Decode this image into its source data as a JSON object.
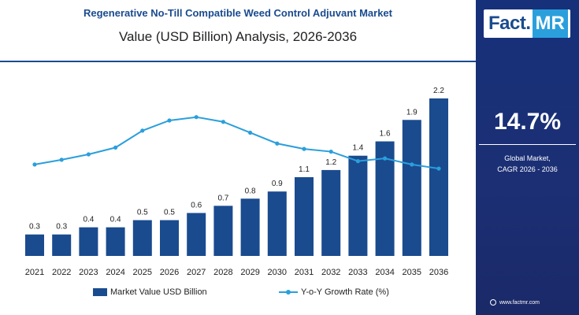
{
  "colors": {
    "bar": "#1a4b8f",
    "line": "#2b9fdc",
    "panel": "#16307a",
    "logo_accent": "#2b9fdc"
  },
  "logo": {
    "fact": "Fact.",
    "mr": "MR"
  },
  "side_panel": {
    "cagr_value": "14.7%",
    "cagr_label_line1": "Global Market,",
    "cagr_label_line2": "CAGR 2026 - 2036",
    "website": "www.factmr.com"
  },
  "chart_data": {
    "type": "bar",
    "title": "Regenerative No-Till Compatible Weed Control Adjuvant Market",
    "subtitle": "Value (USD Billion) Analysis, 2026-2036",
    "categories": [
      "2021",
      "2022",
      "2023",
      "2024",
      "2025",
      "2026",
      "2027",
      "2028",
      "2029",
      "2030",
      "2031",
      "2032",
      "2033",
      "2034",
      "2035",
      "2036"
    ],
    "series": [
      {
        "name": "Market Value USD Billion",
        "type": "bar",
        "values": [
          0.3,
          0.3,
          0.4,
          0.4,
          0.5,
          0.5,
          0.6,
          0.7,
          0.8,
          0.9,
          1.1,
          1.2,
          1.4,
          1.6,
          1.9,
          2.2
        ],
        "labels": [
          "0.3",
          "0.3",
          "0.4",
          "0.4",
          "0.5",
          "0.5",
          "0.6",
          "0.7",
          "0.8",
          "0.9",
          "1.1",
          "1.2",
          "1.4",
          "1.6",
          "1.9",
          "2.2"
        ]
      },
      {
        "name": "Y-o-Y Growth Rate (%)",
        "type": "line",
        "values": [
          13.5,
          14.2,
          15.0,
          16.0,
          18.5,
          20.0,
          20.5,
          19.8,
          18.2,
          16.6,
          15.8,
          15.4,
          14.0,
          14.4,
          13.5,
          12.9
        ]
      }
    ],
    "ylim": [
      0,
      2.2
    ],
    "growth_ylim": [
      0,
      23
    ],
    "grid": false,
    "legend_position": "bottom"
  }
}
